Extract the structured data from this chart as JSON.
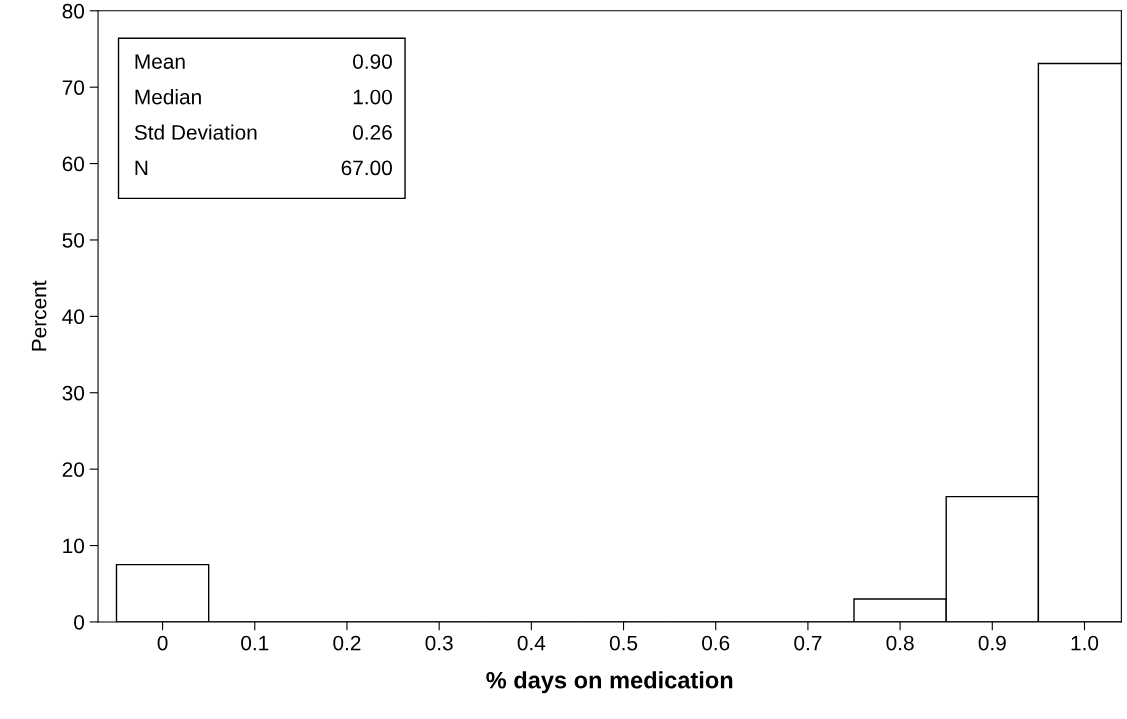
{
  "chart_data": {
    "type": "histogram",
    "xlabel": "% days on medication",
    "ylabel": "Percent",
    "bins": [
      -0.05,
      0.05,
      0.15,
      0.25,
      0.35,
      0.45,
      0.55,
      0.65,
      0.75,
      0.85,
      0.95,
      1.05
    ],
    "values": [
      7.5,
      0,
      0,
      0,
      0,
      0,
      0,
      0,
      3,
      16.4,
      73.1
    ],
    "color": "#ffffff",
    "xlim": [
      -0.07,
      1.04
    ],
    "ylim": [
      0,
      80
    ],
    "xticks": [
      0,
      0.1,
      0.2,
      0.3,
      0.4,
      0.5,
      0.6,
      0.7,
      0.8,
      0.9,
      {
        "value": 1,
        "label": "1.0"
      }
    ],
    "yticks": [
      0,
      10,
      20,
      30,
      40,
      50,
      60,
      70,
      80
    ],
    "annotations": [
      "Mean",
      "0.90",
      "Median",
      "1.00",
      "Std Deviation",
      "0.26",
      "N",
      "67.00"
    ],
    "grid": false,
    "legend": false
  }
}
